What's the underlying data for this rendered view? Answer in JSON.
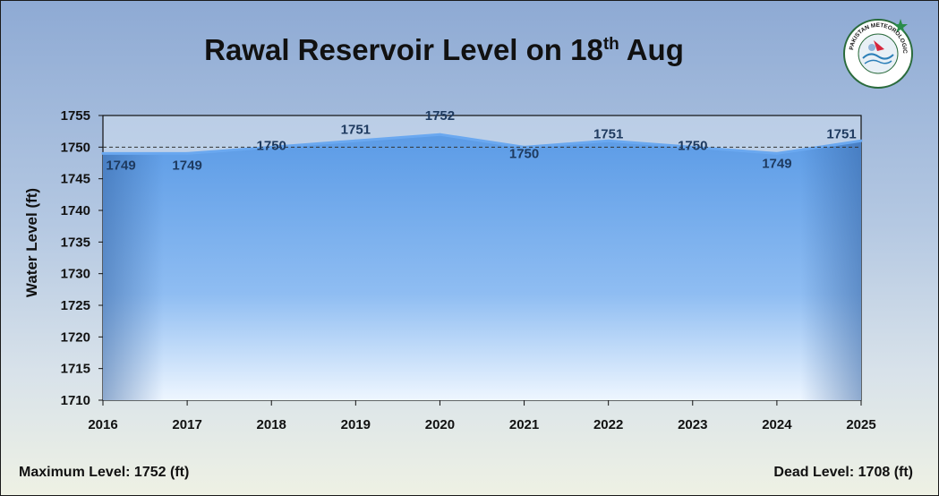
{
  "title_main": "Rawal Reservoir Level on 18",
  "title_sup": "th",
  "title_end": "Aug",
  "footer": {
    "max_level": "Maximum Level: 1752 (ft)",
    "dead_level": "Dead Level: 1708 (ft)"
  },
  "logo": {
    "icon": "pmd-emblem",
    "text": "PAKISTAN METEOROLOGICAL DEPARTMENT"
  },
  "colors": {
    "area_top": "#5b9be6",
    "area_bottom": "#eef6ff",
    "line": "#6aa8f0",
    "dash": "#333333"
  },
  "chart_data": {
    "type": "area",
    "x": [
      "2016",
      "2017",
      "2018",
      "2019",
      "2020",
      "2021",
      "2022",
      "2023",
      "2024",
      "2025"
    ],
    "series": [
      {
        "values": [
          1749,
          1749,
          1750,
          1751,
          1752,
          1750,
          1751,
          1750,
          1749,
          1751
        ]
      }
    ],
    "data_labels": [
      "1749",
      "1749",
      "1750",
      "1751",
      "1752",
      "1750",
      "1751",
      "1750",
      "1749",
      "1751"
    ],
    "reference_line": 1750,
    "ylabel": "Water Level (ft)",
    "xlabel": "",
    "ylim": [
      1710,
      1755
    ],
    "yticks": [
      1710,
      1715,
      1720,
      1725,
      1730,
      1735,
      1740,
      1745,
      1750,
      1755
    ],
    "grid": false,
    "legend": "none"
  }
}
